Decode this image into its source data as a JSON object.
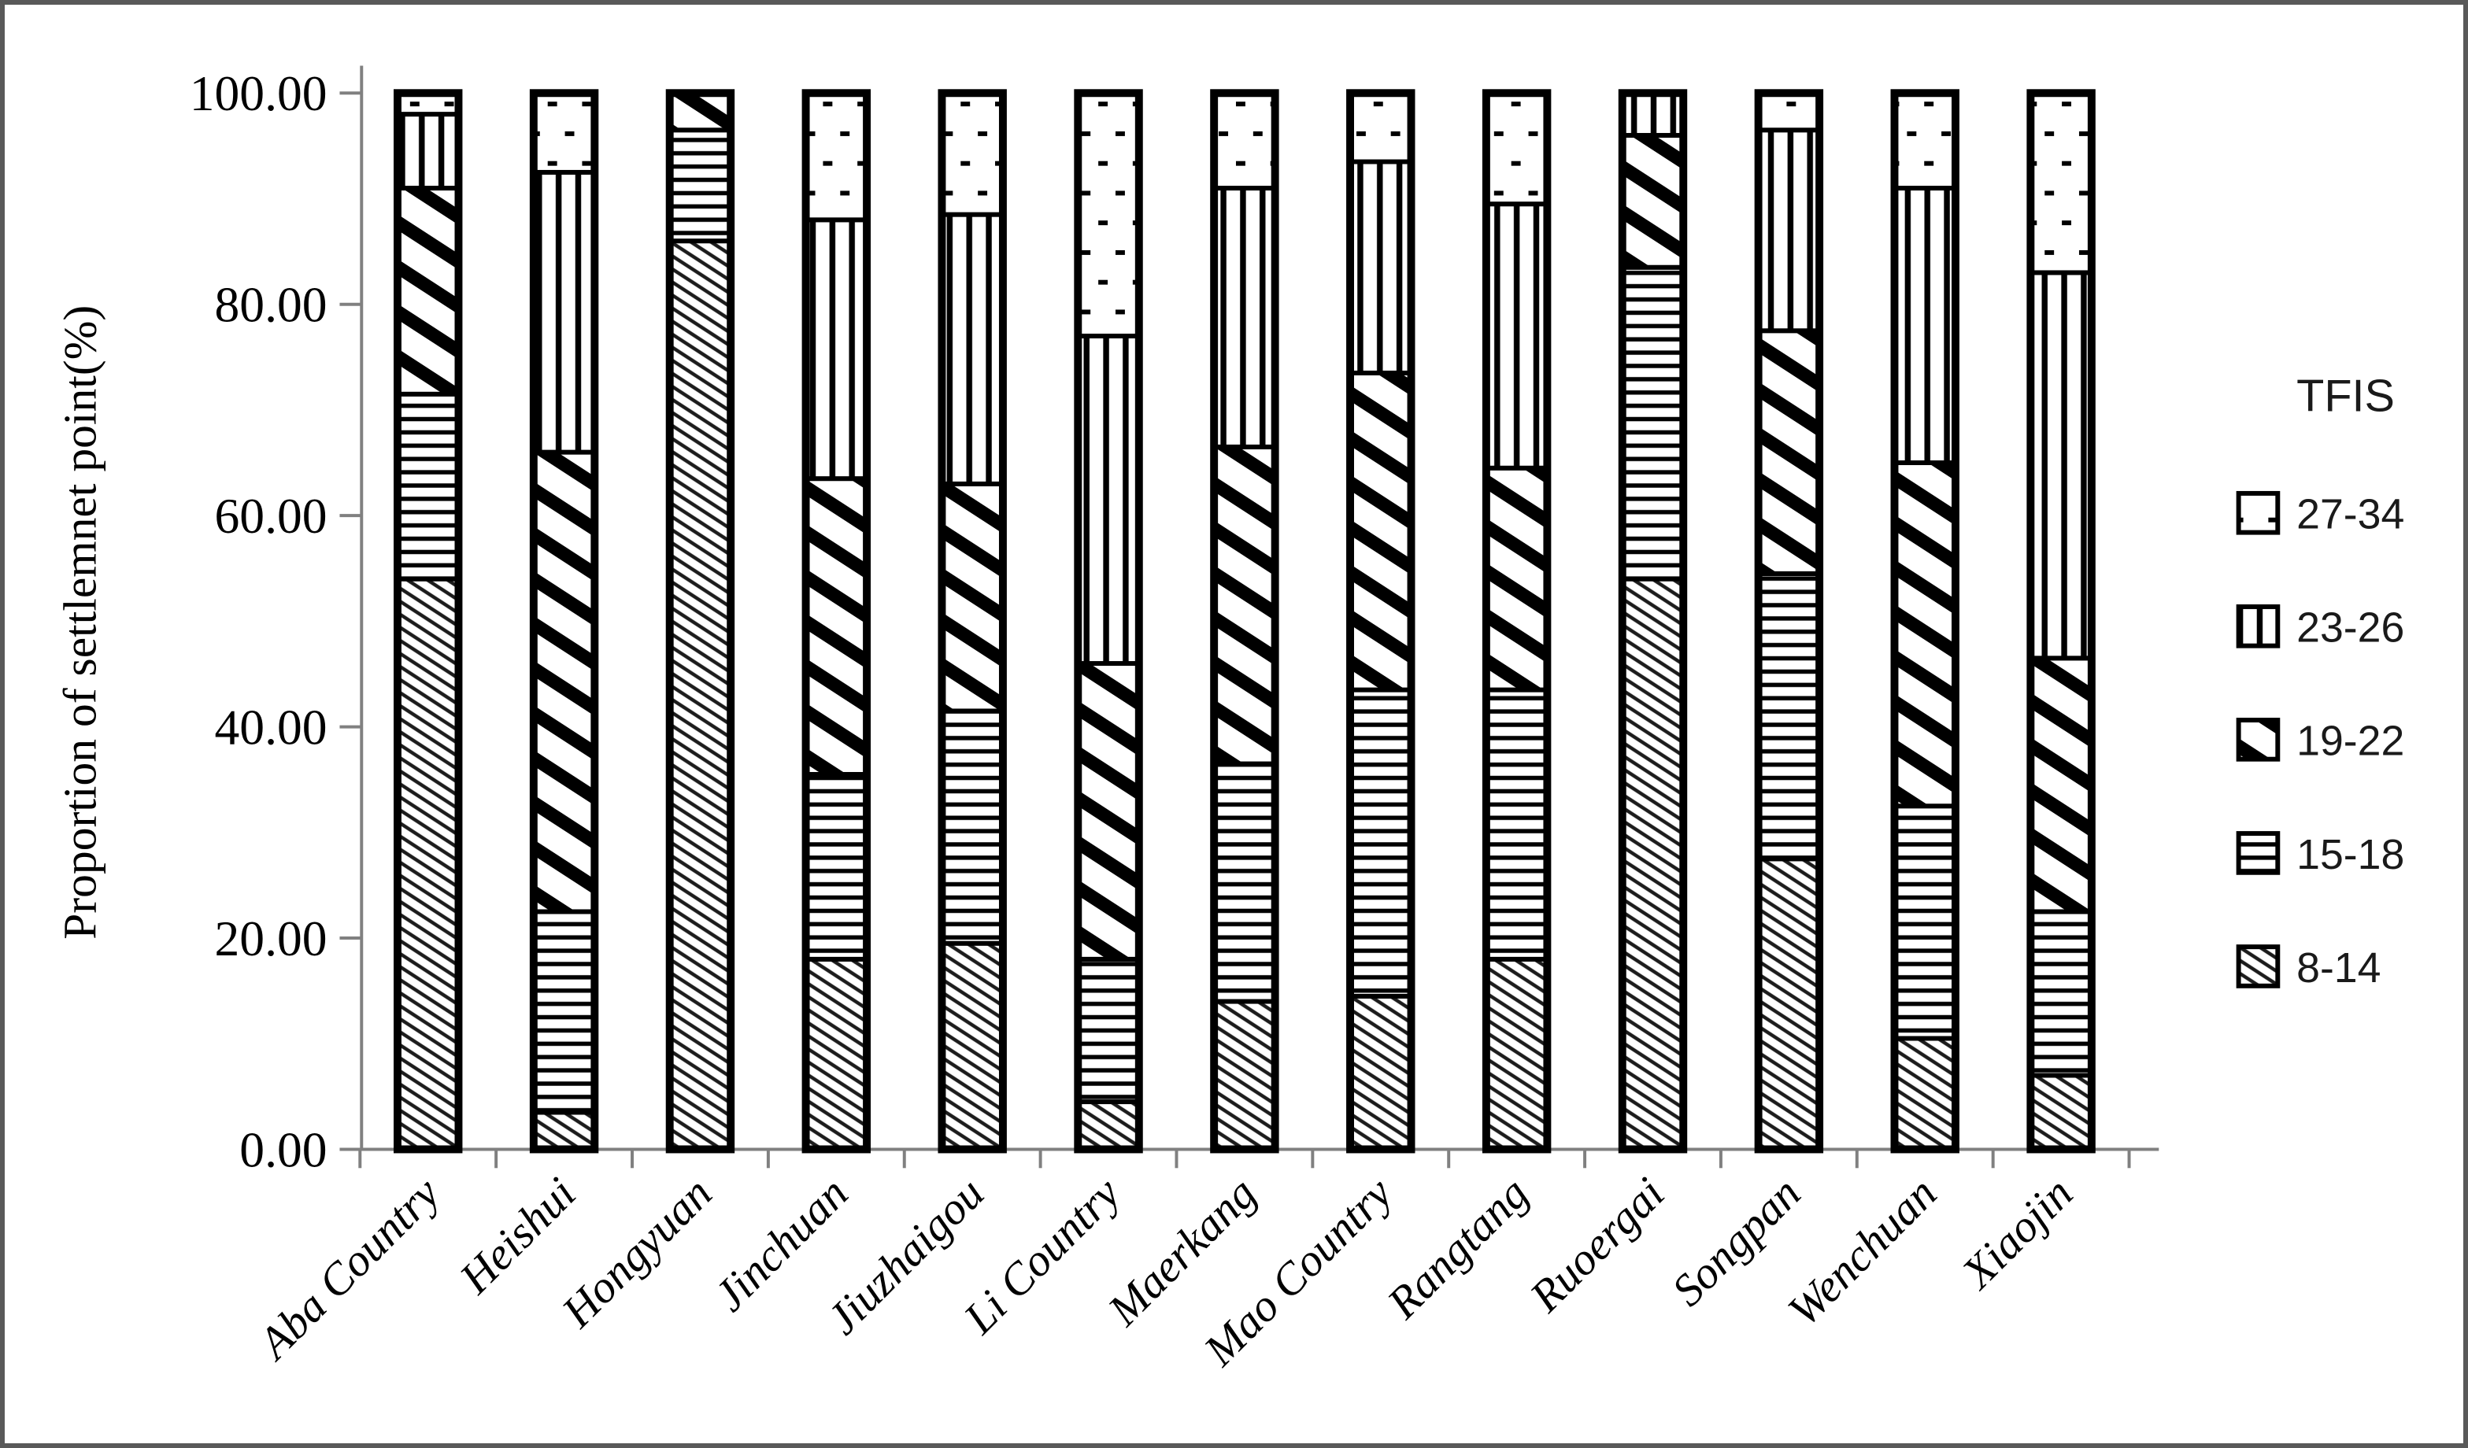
{
  "figure": {
    "background": "#ffffff",
    "border_color": "#595959",
    "axis_color": "#808080",
    "bar_outline_color": "#000000"
  },
  "chart_data": {
    "type": "bar",
    "stacked": true,
    "title": "",
    "xlabel": "",
    "ylabel": "Proportion of settlemnet point(%)",
    "ylim": [
      0,
      100
    ],
    "grid": false,
    "y_ticks": [
      "0.00",
      "20.00",
      "40.00",
      "60.00",
      "80.00",
      "100.00"
    ],
    "y_tick_values": [
      0,
      20,
      40,
      60,
      80,
      100
    ],
    "categories": [
      "Aba Country",
      "Heishui",
      "Hongyuan",
      "Jinchuan",
      "Jiuzhaigou",
      "Li Country",
      "Maerkang",
      "Mao Country",
      "Rangtang",
      "Ruoergai",
      "Songpan",
      "Wenchuan",
      "Xiaojin"
    ],
    "series": [
      {
        "name": "8-14",
        "pattern": "fine-diagonal-hatch",
        "values": [
          54,
          3.5,
          86,
          18,
          19.5,
          4.5,
          14,
          14.5,
          18,
          54,
          27.5,
          10.5,
          7
        ]
      },
      {
        "name": "15-18",
        "pattern": "horizontal-lines",
        "values": [
          17.5,
          19,
          10.5,
          17.5,
          22,
          13.5,
          22.5,
          29,
          25.5,
          29.5,
          27,
          22,
          15.5
        ]
      },
      {
        "name": "19-22",
        "pattern": "bold-diagonal-hatch",
        "values": [
          19.5,
          43.5,
          3.5,
          28,
          21.5,
          28,
          30,
          30,
          21,
          12.5,
          23,
          32.5,
          24
        ]
      },
      {
        "name": "23-26",
        "pattern": "vertical-lines",
        "values": [
          7,
          26.5,
          0,
          24.5,
          25.5,
          31,
          24.5,
          20,
          25,
          4,
          19,
          26,
          36.5
        ]
      },
      {
        "name": "27-34",
        "pattern": "dots",
        "values": [
          2,
          7.5,
          0,
          12,
          11.5,
          23,
          9,
          6.5,
          10.5,
          0,
          3.5,
          9,
          17
        ]
      }
    ],
    "legend": {
      "title": "TFIS",
      "position": "right",
      "items": [
        {
          "label": "27-34",
          "pattern": "dots"
        },
        {
          "label": "23-26",
          "pattern": "vertical-lines"
        },
        {
          "label": "19-22",
          "pattern": "bold-diagonal-hatch"
        },
        {
          "label": "15-18",
          "pattern": "horizontal-lines"
        },
        {
          "label": "8-14",
          "pattern": "fine-diagonal-hatch"
        }
      ]
    }
  }
}
